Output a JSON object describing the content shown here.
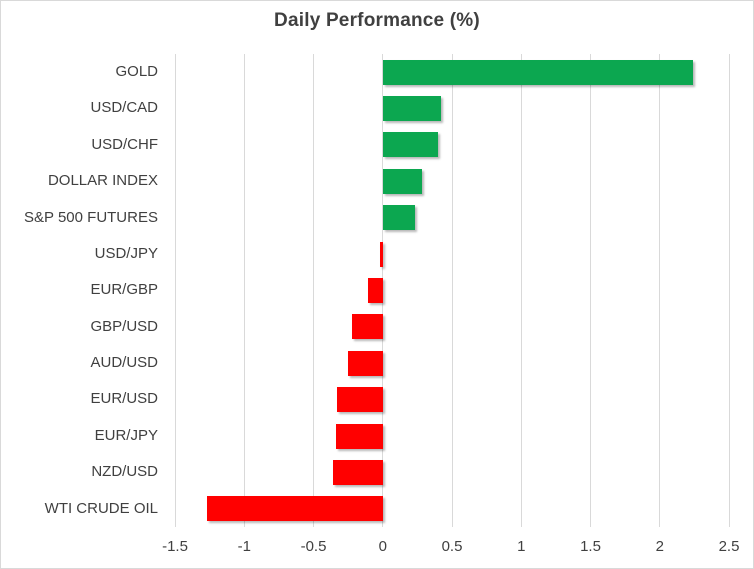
{
  "chart_data": {
    "type": "bar",
    "orientation": "horizontal",
    "title": "Daily Performance (%)",
    "categories": [
      "GOLD",
      "USD/CAD",
      "USD/CHF",
      "DOLLAR INDEX",
      "S&P 500 FUTURES",
      "USD/JPY",
      "EUR/GBP",
      "GBP/USD",
      "AUD/USD",
      "EUR/USD",
      "EUR/JPY",
      "NZD/USD",
      "WTI CRUDE OIL"
    ],
    "values": [
      2.24,
      0.42,
      0.4,
      0.28,
      0.23,
      -0.02,
      -0.11,
      -0.22,
      -0.25,
      -0.33,
      -0.34,
      -0.36,
      -1.27
    ],
    "xlabel": "",
    "ylabel": "",
    "xlim": [
      -1.5,
      2.5
    ],
    "tick_values": [
      -1.5,
      -1,
      -0.5,
      0,
      0.5,
      1,
      1.5,
      2,
      2.5
    ],
    "tick_labels": [
      "-1.5",
      "-1",
      "-0.5",
      "0",
      "0.5",
      "1",
      "1.5",
      "2",
      "2.5"
    ],
    "grid": true,
    "legend": false,
    "colors": {
      "positive": "#0CA750",
      "negative": "#FF0000",
      "gridline": "#D9D9D9",
      "text": "#404040",
      "background": "#FFFFFF"
    }
  }
}
